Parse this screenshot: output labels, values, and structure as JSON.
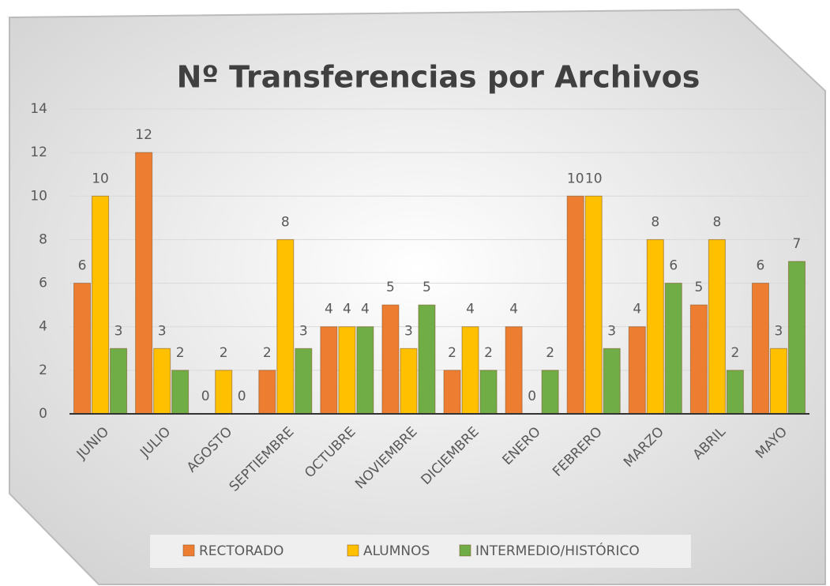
{
  "chart_data": {
    "type": "bar",
    "title": "Nº Transferencias por Archivos",
    "categories": [
      "JUNIO",
      "JULIO",
      "AGOSTO",
      "SEPTIEMBRE",
      "OCTUBRE",
      "NOVIEMBRE",
      "DICIEMBRE",
      "ENERO",
      "FEBRERO",
      "MARZO",
      "ABRIL",
      "MAYO"
    ],
    "series": [
      {
        "name": "RECTORADO",
        "color": "#ed7d31",
        "values": [
          6,
          12,
          0,
          2,
          4,
          5,
          2,
          4,
          10,
          4,
          5,
          6
        ]
      },
      {
        "name": "ALUMNOS",
        "color": "#ffc000",
        "values": [
          10,
          3,
          2,
          8,
          4,
          3,
          4,
          0,
          10,
          8,
          8,
          3
        ]
      },
      {
        "name": "INTERMEDIO/HISTÓRICO",
        "color": "#70ad47",
        "values": [
          3,
          2,
          0,
          3,
          4,
          5,
          2,
          2,
          3,
          6,
          2,
          7
        ]
      }
    ],
    "ylim": [
      0,
      14
    ],
    "yticks": [
      0,
      2,
      4,
      6,
      8,
      10,
      12,
      14
    ],
    "grid": true,
    "legend": "bottom"
  }
}
